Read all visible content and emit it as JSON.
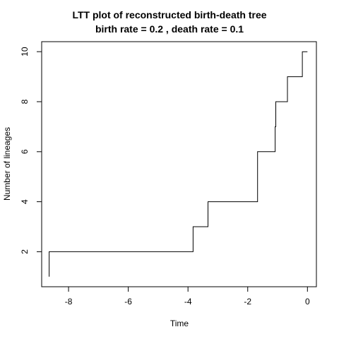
{
  "chart_data": {
    "type": "line",
    "step": true,
    "title": "LTT plot of reconstructed birth-death tree",
    "subtitle": "birth rate =  0.2 , death rate =  0.1",
    "xlabel": "Time",
    "ylabel": "Number of lineages",
    "xlim": [
      -8.9,
      0.3
    ],
    "ylim": [
      0.6,
      10.4
    ],
    "xticks": [
      -8,
      -6,
      -4,
      -2,
      0
    ],
    "xtick_labels": [
      "-8",
      "-6",
      "-4",
      "-2",
      "0"
    ],
    "yticks": [
      2,
      4,
      6,
      8,
      10
    ],
    "ytick_labels": [
      "2",
      "4",
      "6",
      "8",
      "10"
    ],
    "grid": false,
    "line_color": "#000000",
    "series": [
      {
        "x": [
          -8.65,
          -8.65,
          -3.83,
          -3.33,
          -1.67,
          -1.67,
          -1.08,
          -1.06,
          -0.67,
          -0.17,
          0.0
        ],
        "y": [
          1,
          2,
          3,
          4,
          5,
          6,
          7,
          8,
          9,
          10,
          10
        ]
      }
    ]
  }
}
